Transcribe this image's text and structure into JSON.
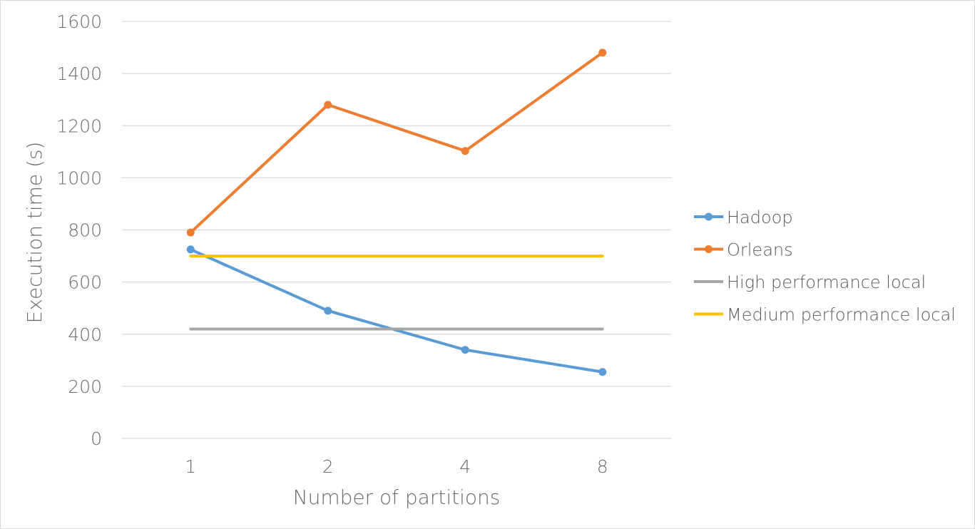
{
  "chart_data": {
    "type": "line",
    "xlabel": "Number of partitions",
    "ylabel": "Execution time (s)",
    "categories": [
      "1",
      "2",
      "4",
      "8"
    ],
    "ylim": [
      0,
      1600
    ],
    "yticks": [
      "0",
      "200",
      "400",
      "600",
      "800",
      "1000",
      "1200",
      "1400",
      "1600"
    ],
    "grid": "horizontal",
    "legend_position": "right",
    "series": [
      {
        "name": "Hadoop",
        "values": [
          725,
          490,
          340,
          255
        ],
        "color": "#5b9bd5",
        "markers": true
      },
      {
        "name": "Orleans",
        "values": [
          790,
          1280,
          1103,
          1480
        ],
        "color": "#ed7d31",
        "markers": true
      },
      {
        "name": "High performance local",
        "values": [
          420,
          420,
          420,
          420
        ],
        "color": "#a5a5a5",
        "markers": false
      },
      {
        "name": "Medium performance local",
        "values": [
          700,
          700,
          700,
          700
        ],
        "color": "#ffc000",
        "markers": false
      }
    ]
  }
}
